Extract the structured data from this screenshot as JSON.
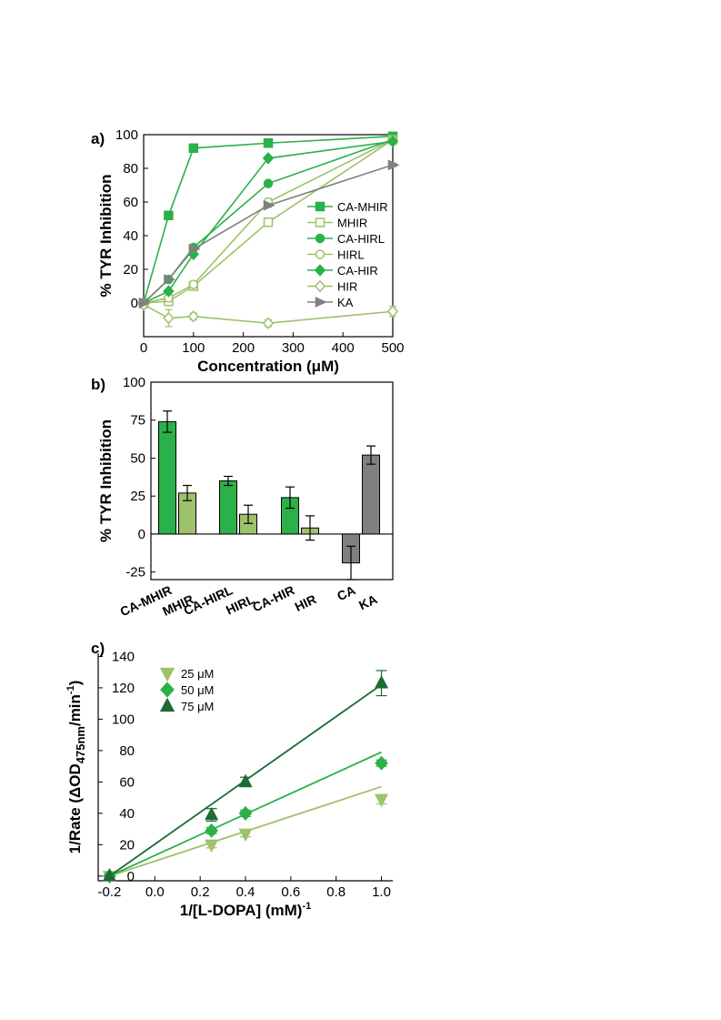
{
  "chart_data": [
    {
      "panel": "a)",
      "type": "line",
      "xlabel": "Concentration (μM)",
      "ylabel": "% TYR Inhibition",
      "xlim": [
        0,
        500
      ],
      "ylim": [
        -20,
        100
      ],
      "xticks": [
        "0",
        "100",
        "200",
        "300",
        "400",
        "500"
      ],
      "yticks": [
        "0",
        "20",
        "40",
        "60",
        "80",
        "100"
      ],
      "legend_position": "right",
      "series": [
        {
          "name": "CA-MHIR",
          "color": "#2bb04a",
          "marker": "square",
          "fill": true,
          "x": [
            0,
            50,
            100,
            250,
            500
          ],
          "y": [
            0,
            52,
            92,
            95,
            99
          ],
          "err": [
            1,
            1,
            1,
            1,
            1
          ]
        },
        {
          "name": "MHIR",
          "color": "#9dc26b",
          "marker": "square",
          "fill": false,
          "x": [
            0,
            50,
            100,
            250,
            500
          ],
          "y": [
            0,
            1,
            10,
            48,
            97
          ],
          "err": [
            1,
            2,
            2,
            2,
            1
          ]
        },
        {
          "name": "CA-HIRL",
          "color": "#2bb04a",
          "marker": "circle",
          "fill": true,
          "x": [
            0,
            50,
            100,
            250,
            500
          ],
          "y": [
            0,
            14,
            33,
            71,
            97
          ],
          "err": [
            1,
            1,
            1,
            1,
            1
          ]
        },
        {
          "name": "HIRL",
          "color": "#9dc26b",
          "marker": "circle",
          "fill": false,
          "x": [
            0,
            50,
            100,
            250,
            500
          ],
          "y": [
            0,
            3,
            11,
            60,
            97
          ],
          "err": [
            1,
            2,
            2,
            2,
            1
          ]
        },
        {
          "name": "CA-HIR",
          "color": "#2bb04a",
          "marker": "diamond",
          "fill": true,
          "x": [
            0,
            50,
            100,
            250,
            500
          ],
          "y": [
            0,
            7,
            29,
            86,
            96
          ],
          "err": [
            1,
            1,
            1,
            1,
            1
          ]
        },
        {
          "name": "HIR",
          "color": "#9dc26b",
          "marker": "diamond",
          "fill": false,
          "x": [
            0,
            50,
            100,
            250,
            500
          ],
          "y": [
            -1,
            -9,
            -8,
            -12,
            -5
          ],
          "err": [
            2,
            5,
            2,
            2,
            3
          ]
        },
        {
          "name": "KA",
          "color": "#808080",
          "marker": "triangle-right",
          "fill": true,
          "x": [
            0,
            50,
            100,
            250,
            500
          ],
          "y": [
            0,
            14,
            32,
            58,
            82
          ],
          "err": [
            1,
            1,
            1,
            1,
            1
          ]
        }
      ]
    },
    {
      "panel": "b)",
      "type": "bar",
      "ylabel": "% TYR Inhibition",
      "ylim": [
        -30,
        100
      ],
      "yticks": [
        "-25",
        "0",
        "25",
        "50",
        "75",
        "100"
      ],
      "bars": [
        {
          "label": "CA-MHIR",
          "value": 74,
          "err": 7,
          "color": "#2bb04a"
        },
        {
          "label": "MHIR",
          "value": 27,
          "err": 5,
          "color": "#9dc26b"
        },
        {
          "label": "CA-HIRL",
          "value": 35,
          "err": 3,
          "color": "#2bb04a"
        },
        {
          "label": "HIRL",
          "value": 13,
          "err": 6,
          "color": "#9dc26b"
        },
        {
          "label": "CA-HIR",
          "value": 24,
          "err": 7,
          "color": "#2bb04a"
        },
        {
          "label": "HIR",
          "value": 4,
          "err": 8,
          "color": "#9dc26b"
        },
        {
          "label": "CA",
          "value": -19,
          "err": 11,
          "color": "#808080"
        },
        {
          "label": "KA",
          "value": 52,
          "err": 6,
          "color": "#808080"
        }
      ]
    },
    {
      "panel": "c)",
      "type": "scatter",
      "xlabel": "1/[L-DOPA] (mM)",
      "xlabel_sup": "-1",
      "ylabel": "1/Rate (ΔOD",
      "ylabel_sub": "475nm",
      "ylabel_tail": "/min",
      "ylabel_sup": "-1",
      "ylabel_close": ")",
      "xlim": [
        -0.25,
        1.05
      ],
      "ylim": [
        -3,
        142
      ],
      "xticks": [
        "-0.2",
        "0.0",
        "0.2",
        "0.4",
        "0.6",
        "0.8",
        "1.0"
      ],
      "yticks": [
        "0",
        "20",
        "40",
        "60",
        "80",
        "100",
        "120",
        "140"
      ],
      "legend_position": "top-left",
      "series": [
        {
          "name": "25 μM",
          "color": "#9dc26b",
          "marker": "triangle-down",
          "x": [
            -0.2,
            0.25,
            0.4,
            1.0
          ],
          "y": [
            0,
            20,
            27,
            49
          ],
          "err": [
            0,
            2,
            2,
            3
          ],
          "fit": {
            "x0": -0.2,
            "y0": 0,
            "x1": 1.0,
            "y1": 57
          }
        },
        {
          "name": "50 μM",
          "color": "#2bb04a",
          "marker": "diamond",
          "x": [
            -0.2,
            0.25,
            0.4,
            1.0
          ],
          "y": [
            0,
            29,
            40,
            72
          ],
          "err": [
            0,
            2,
            2,
            2
          ],
          "fit": {
            "x0": -0.2,
            "y0": 0,
            "x1": 1.0,
            "y1": 79
          }
        },
        {
          "name": "75 μM",
          "color": "#1e6b35",
          "marker": "triangle-up",
          "x": [
            -0.2,
            0.25,
            0.4,
            1.0
          ],
          "y": [
            0,
            39,
            60,
            123
          ],
          "err": [
            0,
            4,
            3,
            8
          ],
          "fit": {
            "x0": -0.2,
            "y0": 0,
            "x1": 1.0,
            "y1": 122
          }
        }
      ]
    }
  ]
}
